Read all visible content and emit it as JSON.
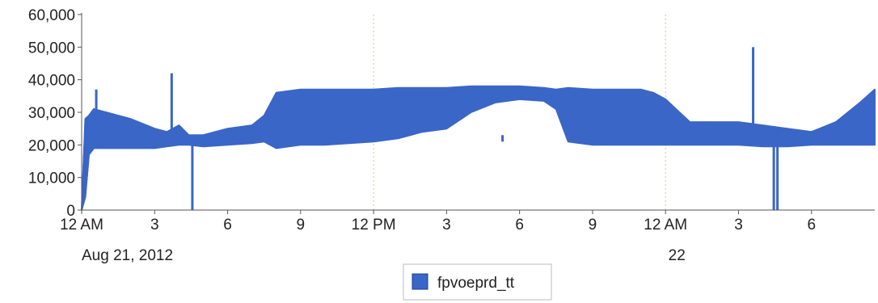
{
  "chart_data": {
    "type": "line",
    "title": "",
    "xlabel": "",
    "ylabel": "",
    "x_unit": "hours since 12 AM Aug 21, 2012",
    "xlim": [
      0,
      32.6
    ],
    "ylim": [
      0,
      60000
    ],
    "grid": "vertical dotted at midnight and 12 PM",
    "y_ticks": [
      "0",
      "10,000",
      "20,000",
      "30,000",
      "40,000",
      "50,000",
      "60,000"
    ],
    "x_ticks": [
      {
        "x": 0,
        "label": "12 AM"
      },
      {
        "x": 3,
        "label": "3"
      },
      {
        "x": 6,
        "label": "6"
      },
      {
        "x": 9,
        "label": "9"
      },
      {
        "x": 12,
        "label": "12 PM"
      },
      {
        "x": 15,
        "label": "3"
      },
      {
        "x": 18,
        "label": "6"
      },
      {
        "x": 21,
        "label": "9"
      },
      {
        "x": 24,
        "label": "12 AM"
      },
      {
        "x": 27,
        "label": "3"
      },
      {
        "x": 30,
        "label": "6"
      }
    ],
    "x_sublabels": [
      {
        "x": 0,
        "label": "Aug 21, 2012"
      },
      {
        "x": 24,
        "label": "22"
      }
    ],
    "legend": {
      "position": "bottom-center",
      "entries": [
        "fpvoeprd_tt"
      ]
    },
    "colors": {
      "series": "#3a66c8",
      "grid": "#c8d08a",
      "axis": "#555555"
    },
    "series": [
      {
        "name": "fpvoeprd_tt",
        "band": {
          "x": [
            0,
            0.15,
            0.3,
            0.5,
            1,
            2,
            3,
            3.5,
            4,
            4.4,
            5,
            6,
            7,
            7.5,
            8,
            9,
            10,
            11,
            12,
            13,
            14,
            15,
            16,
            17,
            18,
            19,
            19.5,
            20,
            21,
            22,
            23,
            23.5,
            24,
            25,
            26,
            27,
            28,
            29,
            30,
            31,
            32,
            32.6
          ],
          "low": [
            0,
            4000,
            17000,
            19000,
            19000,
            19000,
            19000,
            19500,
            20000,
            20000,
            19500,
            20000,
            20500,
            21000,
            19000,
            20000,
            20000,
            20500,
            21000,
            22000,
            24000,
            25000,
            30000,
            33000,
            34000,
            33500,
            31000,
            21000,
            20000,
            20000,
            20000,
            20000,
            20000,
            20000,
            20000,
            20000,
            19500,
            19500,
            20000,
            20000,
            20000,
            20000
          ],
          "high": [
            0,
            28000,
            29000,
            31000,
            30000,
            28000,
            25000,
            24000,
            26000,
            23000,
            23000,
            25000,
            26000,
            29000,
            36000,
            37000,
            37000,
            37000,
            37000,
            37500,
            37500,
            37500,
            38000,
            38000,
            38000,
            37500,
            37000,
            37500,
            37000,
            37000,
            37000,
            36000,
            34000,
            27000,
            27000,
            27000,
            26000,
            25000,
            24000,
            27000,
            33000,
            37000
          ]
        },
        "spikes": [
          {
            "x": 0.6,
            "value": 37000
          },
          {
            "x": 3.7,
            "value": 42000
          },
          {
            "x": 4.55,
            "value": 0
          },
          {
            "x": 17.3,
            "value": 23000
          },
          {
            "x": 27.6,
            "value": 50000
          },
          {
            "x": 28.45,
            "value": 0
          },
          {
            "x": 28.6,
            "value": 0
          }
        ]
      }
    ]
  }
}
